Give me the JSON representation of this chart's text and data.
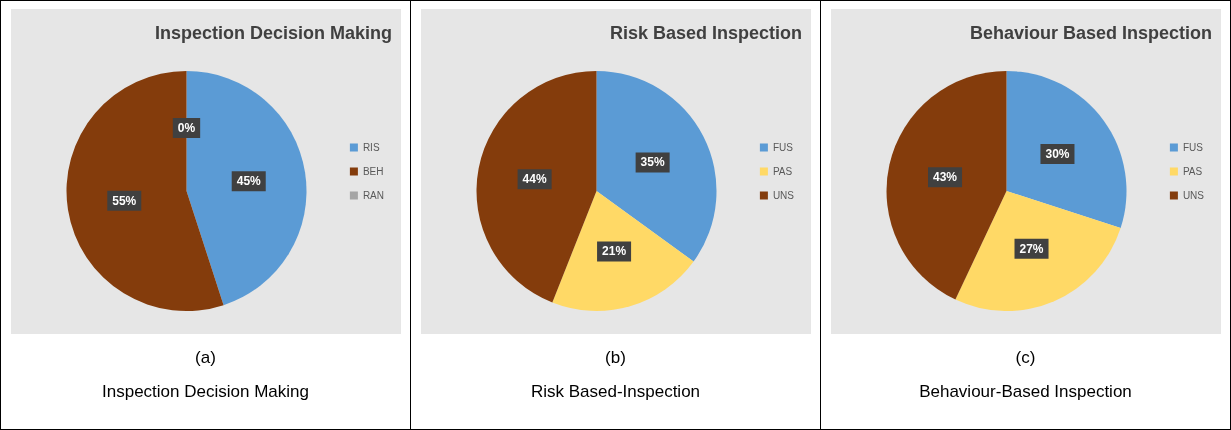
{
  "chart_data": [
    {
      "type": "pie",
      "title": "Inspection Decision Making",
      "categories": [
        "RIS",
        "BEH",
        "RAN"
      ],
      "values": [
        45,
        55,
        0
      ],
      "colors": [
        "#5b9bd5",
        "#843c0c",
        "#a5a5a5"
      ],
      "value_labels": [
        "45%",
        "55%",
        "0%"
      ],
      "legend": "right",
      "annotations": [
        "(a)",
        "Inspection Decision Making"
      ]
    },
    {
      "type": "pie",
      "title": "Risk Based Inspection",
      "categories": [
        "FUS",
        "PAS",
        "UNS"
      ],
      "values": [
        35,
        21,
        44
      ],
      "colors": [
        "#5b9bd5",
        "#ffd966",
        "#843c0c"
      ],
      "value_labels": [
        "35%",
        "21%",
        "44%"
      ],
      "legend": "right",
      "annotations": [
        "(b)",
        "Risk Based-Inspection"
      ]
    },
    {
      "type": "pie",
      "title": "Behaviour Based Inspection",
      "categories": [
        "FUS",
        "PAS",
        "UNS"
      ],
      "values": [
        30,
        27,
        43
      ],
      "colors": [
        "#5b9bd5",
        "#ffd966",
        "#843c0c"
      ],
      "value_labels": [
        "30%",
        "27%",
        "43%"
      ],
      "legend": "right",
      "annotations": [
        "(c)",
        "Behaviour-Based Inspection"
      ]
    }
  ]
}
